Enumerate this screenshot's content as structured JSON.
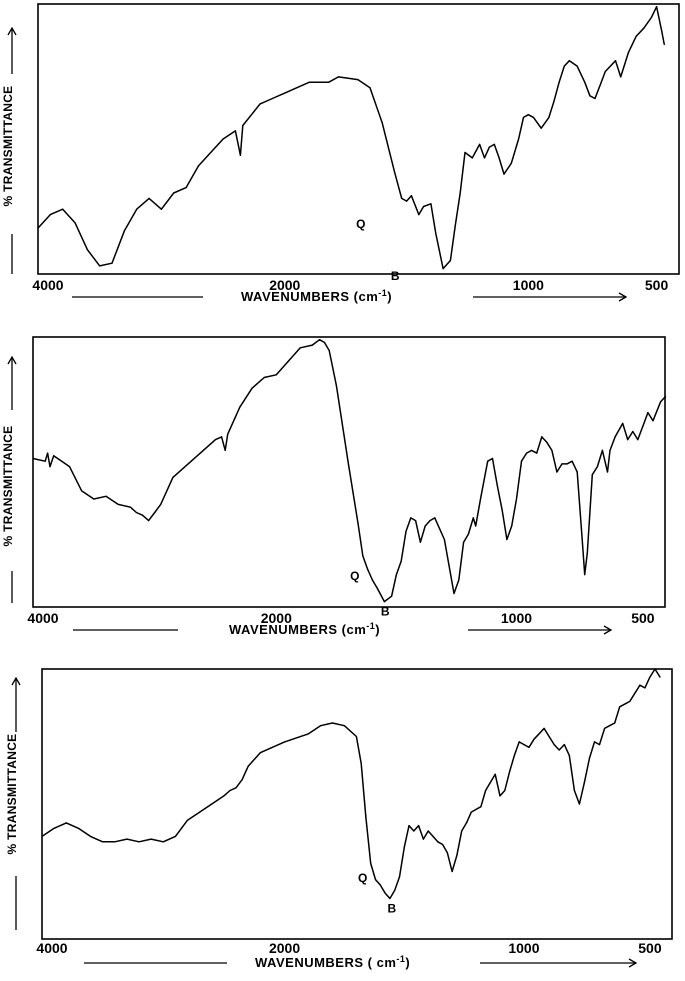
{
  "chart_data": [
    {
      "type": "line",
      "xlabel": "WAVENUMBERS (cm",
      "xlabel_sup": "-1",
      "xlabel_close": ")",
      "ylabel": "% TRANSMITTANCE",
      "xlim": [
        4000,
        400
      ],
      "x_reversed": true,
      "ylim": [
        0,
        100
      ],
      "xticks": [
        4000,
        2000,
        1000,
        500
      ],
      "tick_labels": [
        "4000",
        "2000",
        "1000",
        "500"
      ],
      "grid": false,
      "annotations": [
        {
          "label": "Q",
          "x": 1655,
          "y": 20
        },
        {
          "label": "B",
          "x": 1555,
          "y": 3
        }
      ],
      "series": [
        {
          "points": [
            [
              4000,
              17
            ],
            [
              3900,
              22
            ],
            [
              3800,
              24
            ],
            [
              3700,
              19
            ],
            [
              3600,
              9
            ],
            [
              3500,
              3
            ],
            [
              3400,
              4
            ],
            [
              3300,
              16
            ],
            [
              3200,
              24
            ],
            [
              3100,
              28
            ],
            [
              3000,
              24
            ],
            [
              2900,
              30
            ],
            [
              2800,
              32
            ],
            [
              2700,
              40
            ],
            [
              2600,
              45
            ],
            [
              2500,
              50
            ],
            [
              2400,
              53
            ],
            [
              2360,
              44
            ],
            [
              2340,
              55
            ],
            [
              2200,
              63
            ],
            [
              2100,
              65
            ],
            [
              2000,
              67
            ],
            [
              1900,
              71
            ],
            [
              1820,
              71
            ],
            [
              1780,
              73
            ],
            [
              1700,
              72
            ],
            [
              1650,
              69
            ],
            [
              1600,
              56
            ],
            [
              1550,
              38
            ],
            [
              1520,
              28
            ],
            [
              1500,
              27
            ],
            [
              1480,
              29
            ],
            [
              1450,
              22
            ],
            [
              1430,
              25
            ],
            [
              1400,
              26
            ],
            [
              1380,
              15
            ],
            [
              1350,
              2
            ],
            [
              1320,
              5
            ],
            [
              1300,
              18
            ],
            [
              1280,
              30
            ],
            [
              1260,
              45
            ],
            [
              1230,
              43
            ],
            [
              1200,
              48
            ],
            [
              1180,
              43
            ],
            [
              1160,
              47
            ],
            [
              1140,
              48
            ],
            [
              1120,
              43
            ],
            [
              1100,
              37
            ],
            [
              1070,
              41
            ],
            [
              1040,
              50
            ],
            [
              1020,
              58
            ],
            [
              1000,
              59
            ],
            [
              980,
              58
            ],
            [
              950,
              54
            ],
            [
              920,
              58
            ],
            [
              900,
              64
            ],
            [
              880,
              71
            ],
            [
              860,
              77
            ],
            [
              840,
              79
            ],
            [
              810,
              77
            ],
            [
              780,
              71
            ],
            [
              760,
              66
            ],
            [
              740,
              65
            ],
            [
              720,
              70
            ],
            [
              700,
              75
            ],
            [
              680,
              77
            ],
            [
              660,
              79
            ],
            [
              640,
              73
            ],
            [
              610,
              82
            ],
            [
              580,
              88
            ],
            [
              550,
              91
            ],
            [
              520,
              95
            ],
            [
              500,
              99
            ],
            [
              480,
              90
            ],
            [
              470,
              85
            ]
          ]
        }
      ]
    },
    {
      "type": "line",
      "xlabel": "WAVENUMBERS (cm",
      "xlabel_sup": "-1",
      "xlabel_close": ")",
      "ylabel": "% TRANSMITTANCE",
      "xlim": [
        4000,
        400
      ],
      "x_reversed": true,
      "ylim": [
        0,
        100
      ],
      "xticks": [
        4000,
        2000,
        1000,
        500
      ],
      "tick_labels": [
        "4000",
        "2000",
        "1000",
        "500"
      ],
      "grid": false,
      "annotations": [
        {
          "label": "Q",
          "x": 1640,
          "y": 13
        },
        {
          "label": "B",
          "x": 1555,
          "y": 2
        }
      ],
      "series": [
        {
          "points": [
            [
              4000,
              55
            ],
            [
              3900,
              54
            ],
            [
              3880,
              57
            ],
            [
              3860,
              52
            ],
            [
              3830,
              56
            ],
            [
              3700,
              52
            ],
            [
              3600,
              43
            ],
            [
              3500,
              40
            ],
            [
              3400,
              41
            ],
            [
              3300,
              38
            ],
            [
              3200,
              37
            ],
            [
              3150,
              35
            ],
            [
              3100,
              34
            ],
            [
              3050,
              32
            ],
            [
              3000,
              35
            ],
            [
              2950,
              38
            ],
            [
              2850,
              48
            ],
            [
              2700,
              54
            ],
            [
              2600,
              58
            ],
            [
              2500,
              62
            ],
            [
              2450,
              63
            ],
            [
              2420,
              58
            ],
            [
              2400,
              64
            ],
            [
              2300,
              74
            ],
            [
              2200,
              81
            ],
            [
              2100,
              85
            ],
            [
              2000,
              86
            ],
            [
              1950,
              91
            ],
            [
              1900,
              96
            ],
            [
              1850,
              97
            ],
            [
              1820,
              99
            ],
            [
              1800,
              98
            ],
            [
              1780,
              95
            ],
            [
              1750,
              82
            ],
            [
              1700,
              53
            ],
            [
              1660,
              31
            ],
            [
              1640,
              19
            ],
            [
              1620,
              14
            ],
            [
              1600,
              10
            ],
            [
              1580,
              7
            ],
            [
              1550,
              2
            ],
            [
              1520,
              4
            ],
            [
              1500,
              12
            ],
            [
              1480,
              17
            ],
            [
              1460,
              28
            ],
            [
              1440,
              33
            ],
            [
              1420,
              32
            ],
            [
              1400,
              24
            ],
            [
              1380,
              30
            ],
            [
              1360,
              32
            ],
            [
              1340,
              33
            ],
            [
              1300,
              25
            ],
            [
              1280,
              15
            ],
            [
              1260,
              5
            ],
            [
              1240,
              10
            ],
            [
              1220,
              24
            ],
            [
              1200,
              27
            ],
            [
              1180,
              33
            ],
            [
              1170,
              30
            ],
            [
              1160,
              35
            ],
            [
              1150,
              40
            ],
            [
              1120,
              54
            ],
            [
              1100,
              55
            ],
            [
              1080,
              45
            ],
            [
              1060,
              36
            ],
            [
              1040,
              25
            ],
            [
              1020,
              30
            ],
            [
              1000,
              40
            ],
            [
              980,
              54
            ],
            [
              960,
              57
            ],
            [
              940,
              58
            ],
            [
              920,
              57
            ],
            [
              900,
              63
            ],
            [
              880,
              61
            ],
            [
              860,
              58
            ],
            [
              840,
              50
            ],
            [
              820,
              53
            ],
            [
              800,
              53
            ],
            [
              780,
              54
            ],
            [
              760,
              50
            ],
            [
              740,
              25
            ],
            [
              730,
              12
            ],
            [
              720,
              20
            ],
            [
              700,
              49
            ],
            [
              680,
              52
            ],
            [
              660,
              58
            ],
            [
              640,
              50
            ],
            [
              630,
              58
            ],
            [
              610,
              63
            ],
            [
              580,
              68
            ],
            [
              560,
              62
            ],
            [
              540,
              65
            ],
            [
              520,
              62
            ],
            [
              500,
              67
            ],
            [
              480,
              72
            ],
            [
              460,
              69
            ],
            [
              430,
              76
            ],
            [
              410,
              78
            ]
          ]
        }
      ]
    },
    {
      "type": "line",
      "xlabel": "WAVENUMBERS ( cm",
      "xlabel_sup": "-1",
      "xlabel_close": ")",
      "ylabel": "% TRANSMITTANCE",
      "xlim": [
        4000,
        400
      ],
      "x_reversed": true,
      "ylim": [
        0,
        100
      ],
      "xticks": [
        4000,
        2000,
        1000,
        500
      ],
      "tick_labels": [
        "4000",
        "2000",
        "1000",
        "500"
      ],
      "grid": false,
      "annotations": [
        {
          "label": "Q",
          "x": 1640,
          "y": 24
        },
        {
          "label": "B",
          "x": 1560,
          "y": 15
        }
      ],
      "series": [
        {
          "points": [
            [
              4000,
              38
            ],
            [
              3900,
              41
            ],
            [
              3800,
              43
            ],
            [
              3700,
              41
            ],
            [
              3600,
              38
            ],
            [
              3500,
              36
            ],
            [
              3400,
              36
            ],
            [
              3300,
              37
            ],
            [
              3200,
              36
            ],
            [
              3100,
              37
            ],
            [
              3000,
              36
            ],
            [
              2900,
              38
            ],
            [
              2800,
              44
            ],
            [
              2700,
              47
            ],
            [
              2600,
              50
            ],
            [
              2500,
              53
            ],
            [
              2450,
              55
            ],
            [
              2400,
              56
            ],
            [
              2350,
              59
            ],
            [
              2300,
              64
            ],
            [
              2200,
              69
            ],
            [
              2100,
              71
            ],
            [
              2000,
              73
            ],
            [
              1900,
              76
            ],
            [
              1850,
              79
            ],
            [
              1800,
              80
            ],
            [
              1750,
              79
            ],
            [
              1700,
              75
            ],
            [
              1680,
              65
            ],
            [
              1660,
              45
            ],
            [
              1640,
              28
            ],
            [
              1620,
              22
            ],
            [
              1600,
              20
            ],
            [
              1580,
              17
            ],
            [
              1560,
              15
            ],
            [
              1540,
              18
            ],
            [
              1520,
              23
            ],
            [
              1500,
              34
            ],
            [
              1480,
              42
            ],
            [
              1460,
              40
            ],
            [
              1440,
              42
            ],
            [
              1420,
              37
            ],
            [
              1400,
              40
            ],
            [
              1380,
              38
            ],
            [
              1360,
              36
            ],
            [
              1340,
              35
            ],
            [
              1320,
              32
            ],
            [
              1300,
              25
            ],
            [
              1280,
              31
            ],
            [
              1260,
              40
            ],
            [
              1240,
              43
            ],
            [
              1220,
              47
            ],
            [
              1200,
              48
            ],
            [
              1180,
              49
            ],
            [
              1160,
              55
            ],
            [
              1140,
              58
            ],
            [
              1120,
              61
            ],
            [
              1100,
              53
            ],
            [
              1080,
              55
            ],
            [
              1060,
              62
            ],
            [
              1040,
              68
            ],
            [
              1020,
              73
            ],
            [
              1000,
              72
            ],
            [
              980,
              71
            ],
            [
              960,
              74
            ],
            [
              940,
              76
            ],
            [
              920,
              78
            ],
            [
              900,
              75
            ],
            [
              880,
              72
            ],
            [
              860,
              70
            ],
            [
              840,
              72
            ],
            [
              820,
              68
            ],
            [
              800,
              55
            ],
            [
              780,
              50
            ],
            [
              760,
              58
            ],
            [
              740,
              67
            ],
            [
              720,
              73
            ],
            [
              700,
              72
            ],
            [
              680,
              78
            ],
            [
              660,
              79
            ],
            [
              640,
              80
            ],
            [
              620,
              86
            ],
            [
              600,
              87
            ],
            [
              580,
              88
            ],
            [
              560,
              91
            ],
            [
              540,
              94
            ],
            [
              520,
              93
            ],
            [
              500,
              97
            ],
            [
              480,
              100
            ],
            [
              460,
              97
            ]
          ]
        }
      ]
    }
  ]
}
